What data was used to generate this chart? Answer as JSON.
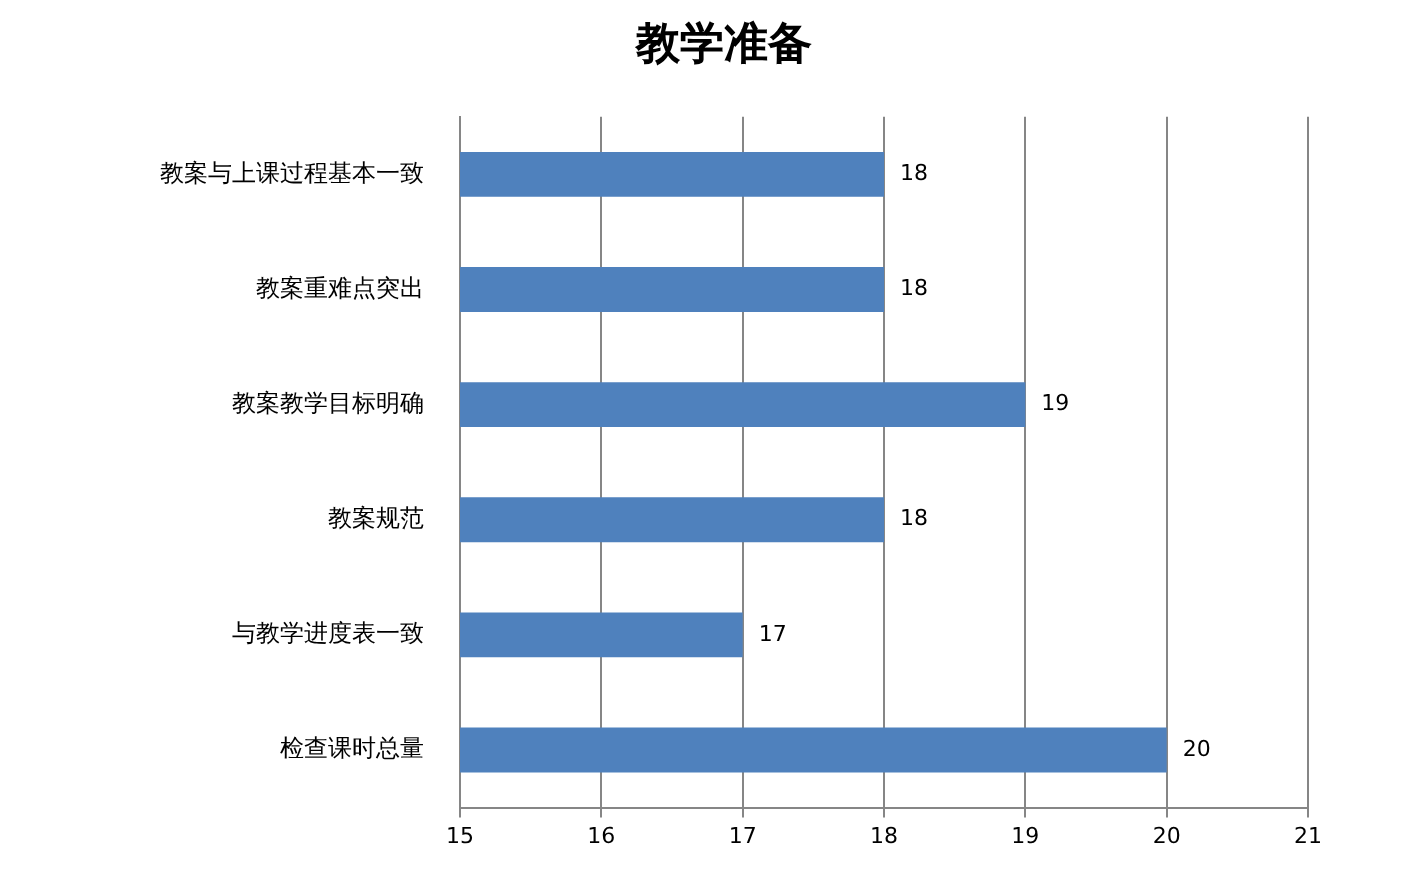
{
  "chart_data": {
    "type": "bar",
    "orientation": "horizontal",
    "title": "教学准备",
    "categories": [
      "教案与上课过程基本一致",
      "教案重难点突出",
      "教案教学目标明确",
      "教案规范",
      "与教学进度表一致",
      "检查课时总量"
    ],
    "values": [
      18,
      18,
      19,
      18,
      17,
      20
    ],
    "color": "#4f81bd",
    "xlim": [
      15,
      21
    ],
    "xticks": [
      15,
      16,
      17,
      18,
      19,
      20,
      21
    ],
    "grid": "x",
    "legend": false,
    "data_labels": true
  }
}
